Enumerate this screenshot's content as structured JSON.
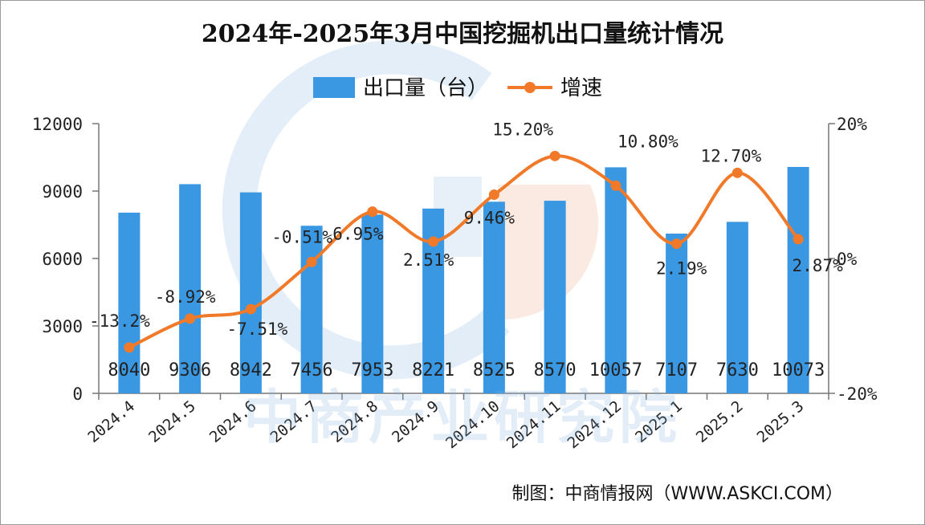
{
  "chart_data": {
    "type": "bar+line",
    "title": "2024年-2025年3月中国挖掘机出口量统计情况",
    "categories": [
      "2024.4",
      "2024.5",
      "2024.6",
      "2024.7",
      "2024.8",
      "2024.9",
      "2024.10",
      "2024.11",
      "2024.12",
      "2025.1",
      "2025.2",
      "2025.3"
    ],
    "series": [
      {
        "name": "出口量（台）",
        "type": "bar",
        "axis": "left",
        "color": "#3a98e3",
        "values": [
          8040,
          9306,
          8942,
          7456,
          7953,
          8221,
          8525,
          8570,
          10057,
          7107,
          7630,
          10073
        ],
        "labels": [
          "8040",
          "9306",
          "8942",
          "7456",
          "7953",
          "8221",
          "8525",
          "8570",
          "10057",
          "7107",
          "7630",
          "10073"
        ]
      },
      {
        "name": "增速",
        "type": "line",
        "axis": "right",
        "color": "#f07a2a",
        "values": [
          -13.2,
          -8.92,
          -7.51,
          -0.51,
          6.95,
          2.51,
          9.46,
          15.2,
          10.8,
          2.19,
          12.7,
          2.87
        ],
        "labels": [
          "-13.2%",
          "-8.92%",
          "-7.51%",
          "-0.51%",
          "6.95%",
          "2.51%",
          "9.46%",
          "15.20%",
          "10.80%",
          "2.19%",
          "12.70%",
          "2.87%"
        ]
      }
    ],
    "y_left": {
      "min": 0,
      "max": 12000,
      "ticks": [
        "0",
        "3000",
        "6000",
        "9000",
        "12000"
      ]
    },
    "y_right": {
      "min": -20,
      "max": 20,
      "ticks": [
        "-20%",
        "0%",
        "20%"
      ]
    },
    "legend_position": "top-center",
    "grid": false
  },
  "source_text": "制图：中商情报网（WWW.ASKCI.COM）",
  "watermark_text": "中商产业研究院"
}
